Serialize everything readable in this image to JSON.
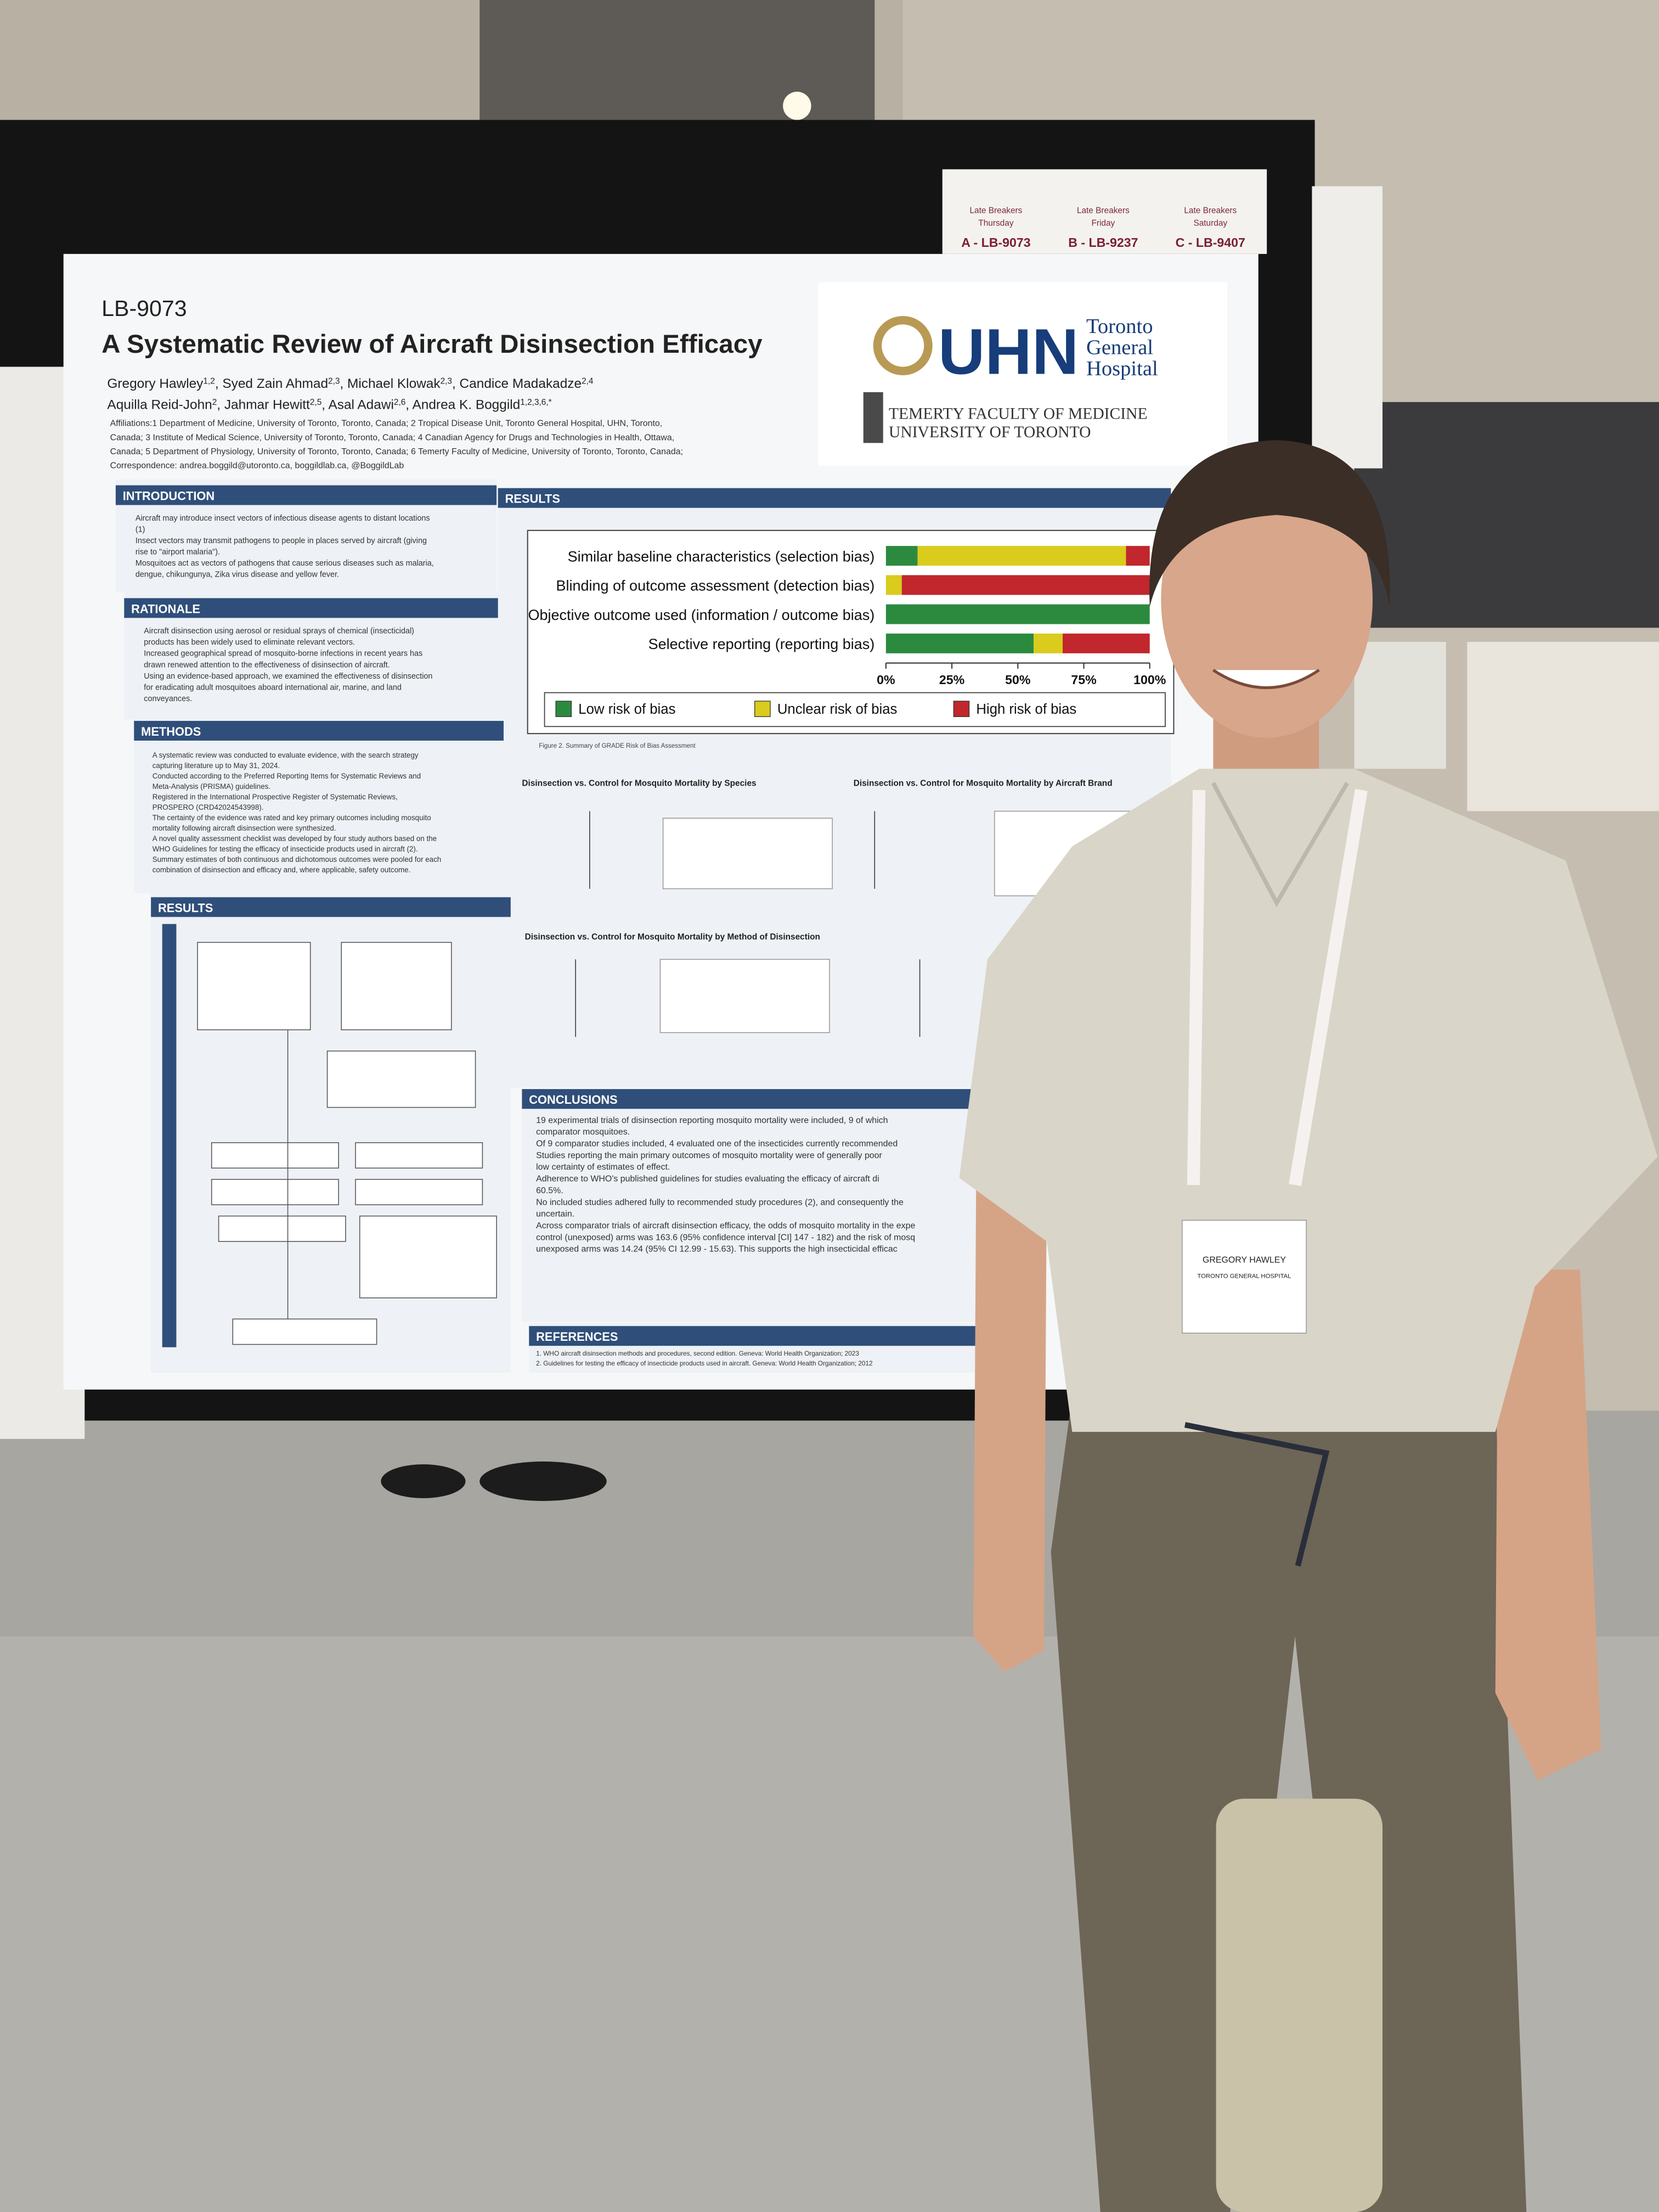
{
  "late_breakers": [
    {
      "label": "Late Breakers",
      "day": "Thursday",
      "code": "A - LB-9073"
    },
    {
      "label": "Late Breakers",
      "day": "Friday",
      "code": "B - LB-9237"
    },
    {
      "label": "Late Breakers",
      "day": "Saturday",
      "code": "C - LB-9407"
    }
  ],
  "poster": {
    "code": "LB-9073",
    "title": "A Systematic Review of Aircraft Disinsection Efficacy",
    "authors": [
      [
        {
          "name": "Gregory Hawley",
          "sup": "1,2"
        },
        {
          "name": ", Syed Zain Ahmad",
          "sup": "2,3"
        },
        {
          "name": ", Michael Klowak",
          "sup": "2,3"
        },
        {
          "name": ", Candice Madakadze",
          "sup": "2,4"
        }
      ],
      [
        {
          "name": "Aquilla Reid-John",
          "sup": "2"
        },
        {
          "name": ", Jahmar Hewitt",
          "sup": "2,5"
        },
        {
          "name": ", Asal Adawi",
          "sup": "2,6"
        },
        {
          "name": ", Andrea K. Boggild",
          "sup": "1,2,3,6,*"
        }
      ]
    ],
    "affiliations": [
      "Affiliations:1 Department of Medicine, University of Toronto, Toronto, Canada; 2 Tropical Disease Unit, Toronto General Hospital, UHN, Toronto,",
      "Canada; 3 Institute of Medical Science, University of Toronto, Toronto, Canada; 4 Canadian Agency for Drugs and Technologies in Health, Ottawa,",
      "Canada; 5 Department of Physiology, University of Toronto, Toronto, Canada; 6 Temerty Faculty of Medicine, University of Toronto, Toronto, Canada;",
      "Correspondence: andrea.boggild@utoronto.ca, boggildlab.ca, @BoggildLab"
    ],
    "logo": {
      "name": "UHN",
      "hospital": [
        "Toronto",
        "General",
        "Hospital"
      ],
      "faculty": "TEMERTY FACULTY OF MEDICINE",
      "university": "UNIVERSITY OF TORONTO"
    },
    "introduction": {
      "heading": "INTRODUCTION",
      "lines": [
        "Aircraft may introduce insect vectors of infectious disease agents to distant locations",
        "(1)",
        "Insect vectors may transmit pathogens to people in places served by aircraft (giving",
        "rise to \"airport malaria\").",
        "Mosquitoes act as vectors of pathogens that cause serious diseases such as malaria,",
        "dengue, chikungunya, Zika virus disease and yellow fever."
      ]
    },
    "rationale": {
      "heading": "RATIONALE",
      "lines": [
        "Aircraft disinsection using aerosol or residual sprays of chemical (insecticidal)",
        "products has been widely used to eliminate relevant vectors.",
        "Increased geographical spread of mosquito-borne infections in recent years has",
        "drawn renewed attention to the effectiveness of disinsection of aircraft.",
        "Using an evidence-based approach, we examined the effectiveness of disinsection",
        "for eradicating adult mosquitoes aboard international air, marine, and land",
        "conveyances."
      ]
    },
    "methods": {
      "heading": "METHODS",
      "lines": [
        "A systematic review was conducted to evaluate evidence, with the search strategy",
        "capturing literature up to May 31, 2024.",
        "Conducted according to the Preferred Reporting Items for Systematic Reviews and",
        "Meta-Analysis (PRISMA) guidelines.",
        "Registered in the International Prospective Register of Systematic Reviews,",
        "PROSPERO (CRD42024543998).",
        "The certainty of the evidence was rated and key primary outcomes including mosquito",
        "mortality following aircraft disinsection were synthesized.",
        "A novel quality assessment checklist was developed by four study authors based on the",
        "WHO Guidelines for testing the efficacy of insecticide products used in aircraft (2).",
        "Summary estimates of both continuous and dichotomous outcomes were pooled for each",
        "combination of disinsection and efficacy and, where applicable, safety outcome."
      ]
    },
    "results_left": {
      "heading": "RESULTS"
    },
    "results_right": {
      "heading": "RESULTS",
      "plots": [
        "Disinsection vs. Control for Mosquito Mortality by Species",
        "Disinsection vs. Control for Mosquito Mortality by Aircraft Brand",
        "Disinsection vs. Control for Mosquito Mortality by Method of Disinsection"
      ]
    },
    "conclusions": {
      "heading": "CONCLUSIONS",
      "lines": [
        "19 experimental trials of disinsection reporting mosquito mortality were included, 9 of which",
        "comparator mosquitoes.",
        "Of 9 comparator studies included, 4 evaluated one of the insecticides currently recommended",
        "Studies reporting the main primary outcomes of mosquito mortality were of generally poor",
        "low certainty of estimates of effect.",
        "Adherence to WHO's published guidelines for studies evaluating the efficacy of aircraft di",
        "60.5%.",
        "No included studies adhered fully to recommended study procedures (2), and consequently the",
        "uncertain.",
        "Across comparator trials of aircraft disinsection efficacy, the odds of mosquito mortality in the expe",
        "control (unexposed) arms was 163.6 (95% confidence interval [CI] 147 - 182) and the risk of mosq",
        "unexposed arms was 14.24 (95% CI 12.99 - 15.63). This supports the high insecticidal efficac"
      ]
    },
    "references": {
      "heading": "REFERENCES",
      "lines": [
        "1.  WHO aircraft disinsection methods and procedures, second edition. Geneva: World Health Organization; 2023",
        "2.  Guidelines for testing the efficacy of insecticide products used in aircraft. Geneva: World Health Organization; 2012"
      ]
    }
  },
  "badge": {
    "name": "GREGORY HAWLEY",
    "org": "TORONTO GENERAL HOSPITAL"
  },
  "chart_data": {
    "type": "bar",
    "orientation": "horizontal",
    "stacked": true,
    "caption": "Figure 2. Summary of GRADE Risk of Bias Assessment",
    "categories": [
      "Similar baseline characteristics (selection bias)",
      "Blinding of outcome assessment (detection bias)",
      "Objective outcome used (information / outcome bias)",
      "Selective reporting (reporting bias)"
    ],
    "series": [
      {
        "name": "Low risk of bias",
        "color": "#2c8a3f",
        "values": [
          12,
          0,
          100,
          56
        ]
      },
      {
        "name": "Unclear risk of bias",
        "color": "#d9cc1c",
        "values": [
          79,
          6,
          0,
          11
        ]
      },
      {
        "name": "High risk of bias",
        "color": "#c1272d",
        "values": [
          9,
          94,
          0,
          33
        ]
      }
    ],
    "xlim": [
      0,
      100
    ],
    "xticks": [
      {
        "value": 0,
        "label": "0%"
      },
      {
        "value": 25,
        "label": "25%"
      },
      {
        "value": 50,
        "label": "50%"
      },
      {
        "value": 75,
        "label": "75%"
      },
      {
        "value": 100,
        "label": "100%"
      }
    ]
  }
}
